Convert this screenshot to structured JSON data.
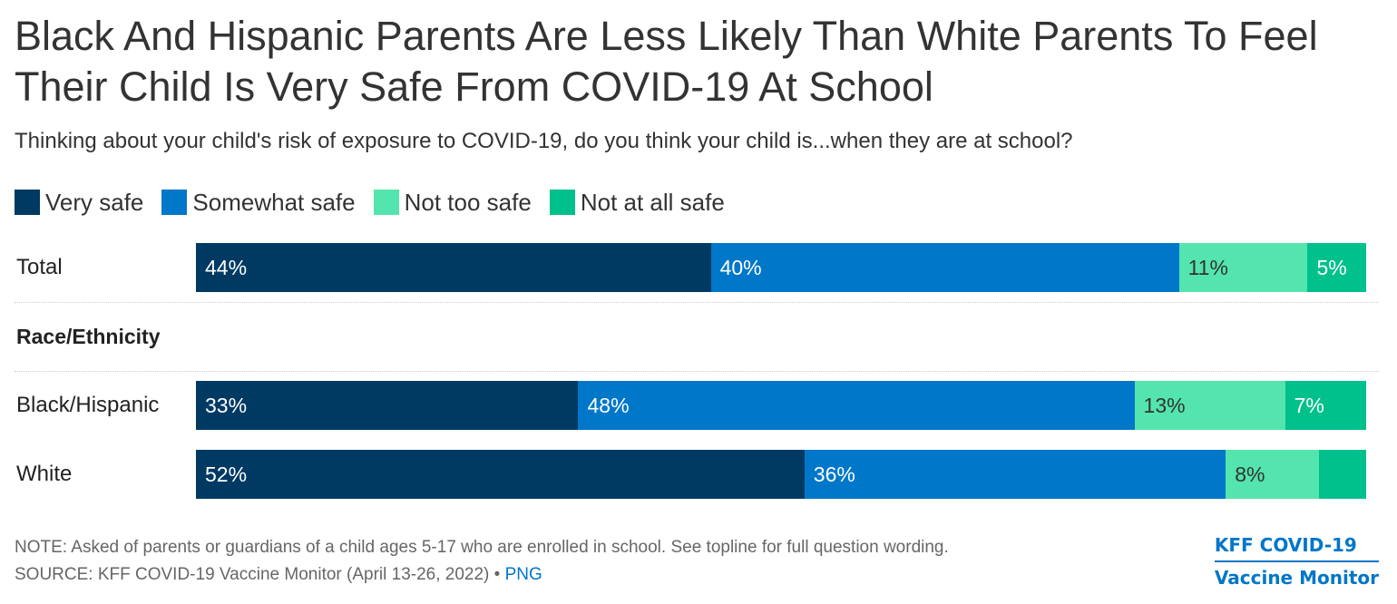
{
  "chart_data": {
    "type": "bar",
    "orientation": "horizontal",
    "stacked": true,
    "title": "Black And Hispanic Parents Are Less Likely Than White Parents To Feel Their Child Is Very Safe From COVID-19 At School",
    "subtitle": "Thinking about your child's risk of exposure to COVID-19, do you think your child is...when they are at school?",
    "xlim": [
      0,
      100
    ],
    "grid": false,
    "legend_position": "top-left",
    "series": [
      {
        "name": "Very safe",
        "color": "#003a63",
        "label_color": "#ffffff"
      },
      {
        "name": "Somewhat safe",
        "color": "#0077c8",
        "label_color": "#ffffff"
      },
      {
        "name": "Not too safe",
        "color": "#53e5ad",
        "label_color": "#333333"
      },
      {
        "name": "Not at all safe",
        "color": "#00c08b",
        "label_color": "#ffffff"
      }
    ],
    "rows": [
      {
        "label": "Total",
        "values": [
          44,
          40,
          11,
          5
        ],
        "labels": [
          "44%",
          "40%",
          "11%",
          "5%"
        ]
      },
      {
        "group": "Race/Ethnicity"
      },
      {
        "label": "Black/Hispanic",
        "values": [
          33,
          48,
          13,
          7
        ],
        "labels": [
          "33%",
          "48%",
          "13%",
          "7%"
        ]
      },
      {
        "label": "White",
        "values": [
          52,
          36,
          8,
          4
        ],
        "labels": [
          "52%",
          "36%",
          "8%",
          ""
        ]
      }
    ]
  },
  "footer": {
    "note": "NOTE: Asked of parents or guardians of a child ages 5-17 who are enrolled in school. See topline for full question wording.",
    "source": "SOURCE: KFF COVID-19 Vaccine Monitor (April 13-26, 2022) •",
    "png_link": "PNG"
  },
  "logo": {
    "line1": "KFF COVID-19",
    "line2": "Vaccine Monitor"
  }
}
